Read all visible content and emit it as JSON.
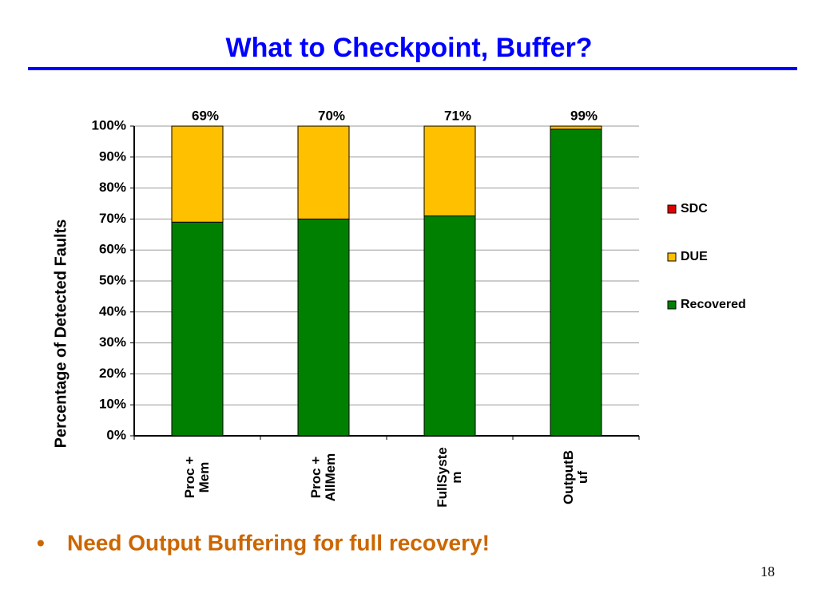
{
  "title": "What to Checkpoint, Buffer?",
  "bullet": "Need Output Buffering for full recovery!",
  "page_number": "18",
  "chart_data": {
    "type": "stacked-bar",
    "y_label": "Percentage of Detected Faults",
    "categories": [
      "Proc + Mem",
      "Proc + AllMem",
      "FullSystem",
      "OutputBuf"
    ],
    "series": [
      {
        "name": "Recovered",
        "color": "#008000",
        "values": [
          69,
          70,
          71,
          99
        ],
        "value_labels": [
          "69%",
          "70%",
          "71%",
          "99%"
        ]
      },
      {
        "name": "DUE",
        "color": "#ffc000",
        "values": [
          31,
          30,
          29,
          1
        ]
      },
      {
        "name": "SDC",
        "color": "#e00000",
        "values": [
          0,
          0,
          0,
          0
        ]
      }
    ],
    "ylim": [
      0,
      100
    ],
    "yticks": [
      {
        "value": 0,
        "label": "0%"
      },
      {
        "value": 10,
        "label": "10%"
      },
      {
        "value": 20,
        "label": "20%"
      },
      {
        "value": 30,
        "label": "30%"
      },
      {
        "value": 40,
        "label": "40%"
      },
      {
        "value": 50,
        "label": "50%"
      },
      {
        "value": 60,
        "label": "60%"
      },
      {
        "value": 70,
        "label": "70%"
      },
      {
        "value": 80,
        "label": "80%"
      },
      {
        "value": 90,
        "label": "90%"
      },
      {
        "value": 100,
        "label": "100%"
      }
    ],
    "grid": true,
    "legend": "right"
  }
}
